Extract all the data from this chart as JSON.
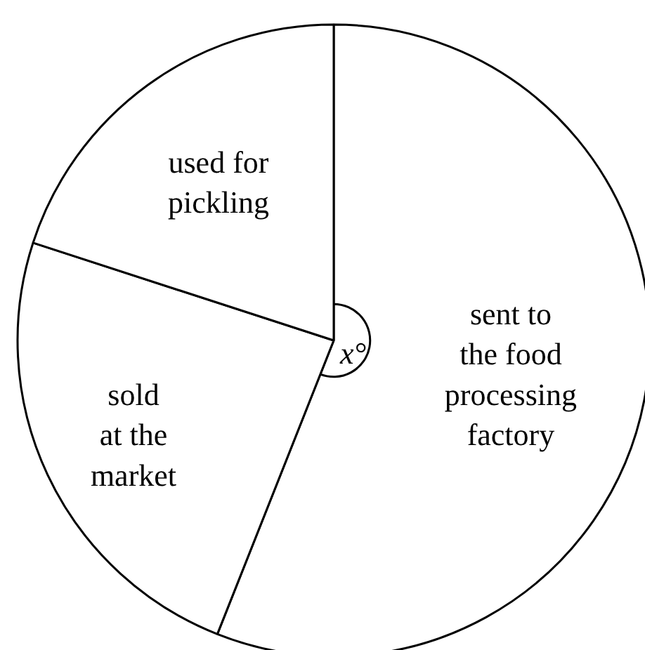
{
  "chart_data": {
    "type": "pie",
    "categories": [
      "sent to\nthe food\nprocessing\nfactory",
      "sold\nat the\nmarket",
      "used for\npickling"
    ],
    "values": [
      56,
      24,
      20
    ],
    "colors": [
      "#ffffff",
      "#ffffff",
      "#ffffff"
    ],
    "annotations": [
      "x°"
    ]
  }
}
